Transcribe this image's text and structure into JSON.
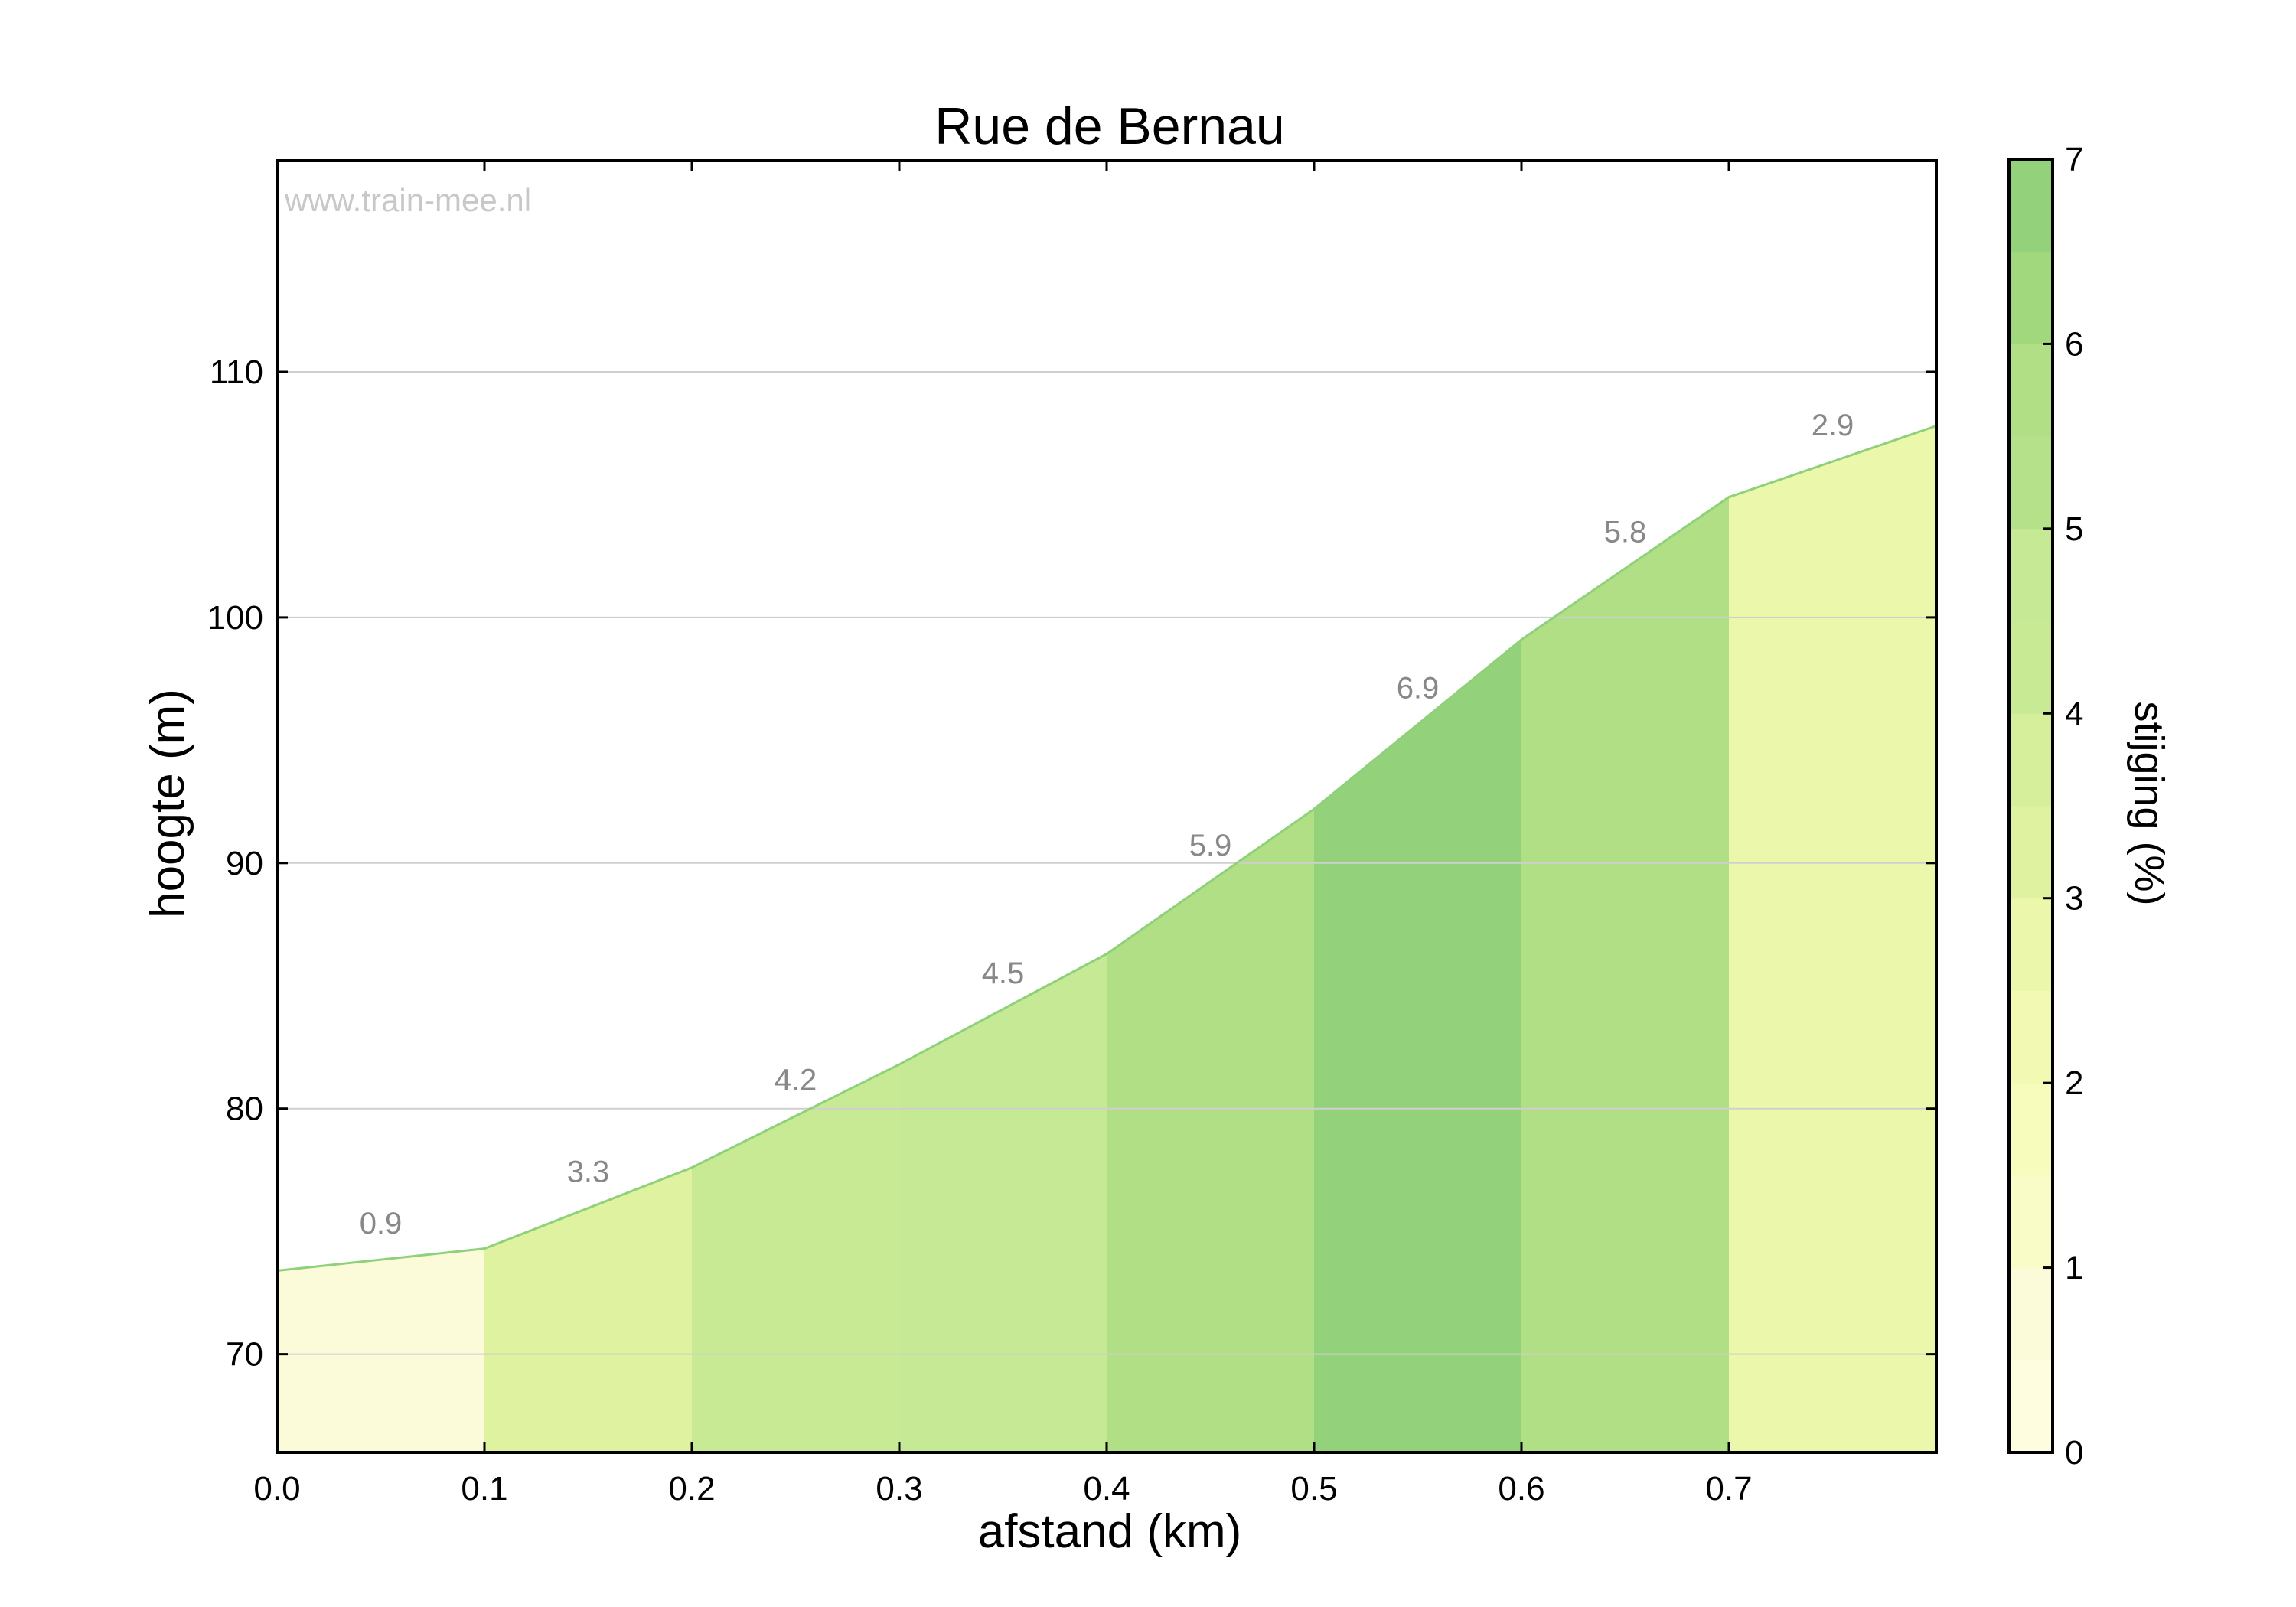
{
  "chart_data": {
    "type": "area",
    "title": "Rue de Bernau",
    "watermark": "www.train-mee.nl",
    "xlabel": "afstand (km)",
    "ylabel": "hoogte (m)",
    "xlim": [
      0,
      0.8
    ],
    "ylim": [
      66,
      118.6
    ],
    "x_ticks": [
      0.0,
      0.1,
      0.2,
      0.3,
      0.4,
      0.5,
      0.6,
      0.7
    ],
    "x_tick_labels": [
      "0.0",
      "0.1",
      "0.2",
      "0.3",
      "0.4",
      "0.5",
      "0.6",
      "0.7"
    ],
    "y_ticks": [
      70,
      80,
      90,
      100,
      110
    ],
    "y_tick_labels": [
      "70",
      "80",
      "90",
      "100",
      "110"
    ],
    "grid": true,
    "profile": [
      {
        "x": 0.0,
        "y": 73.4
      },
      {
        "x": 0.1,
        "y": 74.3
      },
      {
        "x": 0.2,
        "y": 77.6
      },
      {
        "x": 0.3,
        "y": 81.8
      },
      {
        "x": 0.4,
        "y": 86.3
      },
      {
        "x": 0.5,
        "y": 92.2
      },
      {
        "x": 0.6,
        "y": 99.1
      },
      {
        "x": 0.7,
        "y": 104.9
      },
      {
        "x": 0.8,
        "y": 107.8
      }
    ],
    "segments": [
      {
        "x0": 0.0,
        "x1": 0.1,
        "grade": 0.9,
        "label": "0.9"
      },
      {
        "x0": 0.1,
        "x1": 0.2,
        "grade": 3.3,
        "label": "3.3"
      },
      {
        "x0": 0.2,
        "x1": 0.3,
        "grade": 4.2,
        "label": "4.2"
      },
      {
        "x0": 0.3,
        "x1": 0.4,
        "grade": 4.5,
        "label": "4.5"
      },
      {
        "x0": 0.4,
        "x1": 0.5,
        "grade": 5.9,
        "label": "5.9"
      },
      {
        "x0": 0.5,
        "x1": 0.6,
        "grade": 6.9,
        "label": "6.9"
      },
      {
        "x0": 0.6,
        "x1": 0.7,
        "grade": 5.8,
        "label": "5.8"
      },
      {
        "x0": 0.7,
        "x1": 0.8,
        "grade": 2.9,
        "label": "2.9"
      }
    ],
    "colorbar": {
      "label": "stijging (%)",
      "range": [
        0,
        7
      ],
      "ticks": [
        0,
        1,
        2,
        3,
        4,
        5,
        6,
        7
      ],
      "tick_labels": [
        "0",
        "1",
        "2",
        "3",
        "4",
        "5",
        "6",
        "7"
      ],
      "bins": [
        {
          "from": 0.0,
          "to": 0.5,
          "color": "#fffde0"
        },
        {
          "from": 0.5,
          "to": 1.0,
          "color": "#fcfbd9"
        },
        {
          "from": 1.0,
          "to": 1.5,
          "color": "#fafcc8"
        },
        {
          "from": 1.5,
          "to": 2.0,
          "color": "#f7fbbc"
        },
        {
          "from": 2.0,
          "to": 2.5,
          "color": "#f1f9b2"
        },
        {
          "from": 2.5,
          "to": 3.0,
          "color": "#ebf8ac"
        },
        {
          "from": 3.0,
          "to": 3.5,
          "color": "#dff29f"
        },
        {
          "from": 3.5,
          "to": 4.0,
          "color": "#d6ef9a"
        },
        {
          "from": 4.0,
          "to": 4.5,
          "color": "#c8ea95"
        },
        {
          "from": 4.5,
          "to": 5.0,
          "color": "#c6e995"
        },
        {
          "from": 5.0,
          "to": 5.5,
          "color": "#b5e18a"
        },
        {
          "from": 5.5,
          "to": 6.0,
          "color": "#b0df86"
        },
        {
          "from": 6.0,
          "to": 6.5,
          "color": "#a1d87e"
        },
        {
          "from": 6.5,
          "to": 7.0,
          "color": "#93d17a"
        }
      ]
    },
    "colors": {
      "outline": "#8fd17a",
      "grade_label": "#888888",
      "watermark": "#c8c8c8",
      "grid": "#cfcfcf"
    }
  }
}
